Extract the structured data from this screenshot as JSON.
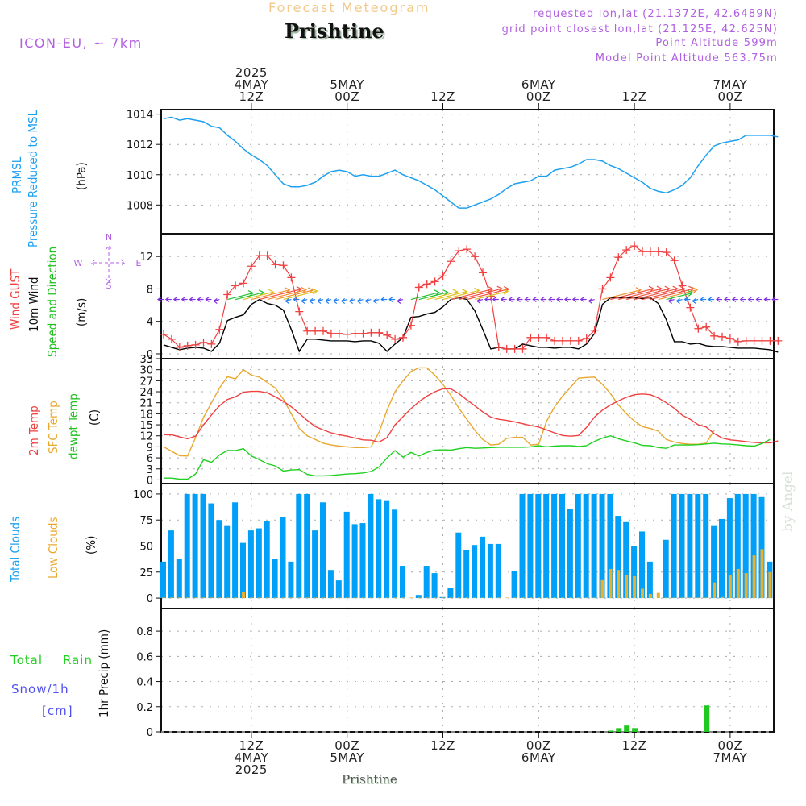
{
  "header": {
    "super_title": "Forecast Meteogram",
    "location": "Prishtine",
    "model": "ICON-EU, ~ 7km",
    "requested": "requested lon,lat (21.1372E, 42.6489N)",
    "grid_point": "grid point closest lon,lat (21.125E, 42.625N)",
    "point_altitude": "Point Altitude 599m",
    "model_altitude": "Model Point Altitude 563.75m"
  },
  "footer": {
    "location": "Prishtine",
    "watermark": "by Angel"
  },
  "time_axis": {
    "start": "2025-05-04T01Z",
    "step_hours": 1,
    "top_labels": [
      {
        "hour": 11,
        "lines": [
          "2025",
          "4MAY",
          "12Z"
        ]
      },
      {
        "hour": 23,
        "lines": [
          "5MAY",
          "00Z"
        ]
      },
      {
        "hour": 35,
        "lines": [
          "12Z"
        ]
      },
      {
        "hour": 47,
        "lines": [
          "6MAY",
          "00Z"
        ]
      },
      {
        "hour": 59,
        "lines": [
          "12Z"
        ]
      },
      {
        "hour": 71,
        "lines": [
          "7MAY",
          "00Z"
        ]
      }
    ],
    "bottom_labels": [
      {
        "hour": 11,
        "lines": [
          "12Z",
          "4MAY",
          "2025"
        ]
      },
      {
        "hour": 23,
        "lines": [
          "00Z",
          "5MAY"
        ]
      },
      {
        "hour": 35,
        "lines": [
          "12Z"
        ]
      },
      {
        "hour": 47,
        "lines": [
          "00Z",
          "6MAY"
        ]
      },
      {
        "hour": 59,
        "lines": [
          "12Z"
        ]
      },
      {
        "hour": 71,
        "lines": [
          "00Z",
          "7MAY"
        ]
      }
    ],
    "hours_total": 76
  },
  "colors": {
    "pressure": "#1ea0f0",
    "gust": "#f04040",
    "wind": "#000000",
    "temp2m": "#f04040",
    "sfc_temp": "#e8a830",
    "dewpoint": "#20d020",
    "total_clouds": "#00a0f8",
    "low_clouds": "#e8b030",
    "rain": "#20c820",
    "snow": "#5050f0",
    "compass": "#b060e0"
  },
  "legends": {
    "pressure": [
      "PRMSL",
      "Pressure Reduced to MSL",
      "(hPa)"
    ],
    "wind": [
      "Wind GUST",
      "10m Wind",
      "Speed and Direction",
      "(m/s)"
    ],
    "compass": {
      "n": "N",
      "s": "S",
      "w": "W",
      "e": "E"
    },
    "temp": [
      "2m Temp",
      "SFC Temp",
      "dewpt Temp",
      "(C)"
    ],
    "clouds": [
      "Total Clouds",
      "Low Clouds",
      "(%)"
    ],
    "precip": {
      "total": "Total",
      "rain": "Rain",
      "snow": "Snow/1h",
      "unit": "[cm]",
      "axis": "1hr Precip (mm)"
    }
  },
  "chart_data": [
    {
      "type": "line",
      "title": "PRMSL Pressure Reduced to MSL",
      "ylabel": "(hPa)",
      "ylim": [
        1006.1,
        1014.3
      ],
      "yticks": [
        1008,
        1010,
        1012,
        1014
      ],
      "series": [
        {
          "name": "PRMSL",
          "values": [
            1013.7,
            1013.8,
            1013.6,
            1013.7,
            1013.6,
            1013.5,
            1013.2,
            1013.1,
            1012.6,
            1012.2,
            1011.7,
            1011.3,
            1011.0,
            1010.6,
            1010.0,
            1009.4,
            1009.2,
            1009.2,
            1009.3,
            1009.5,
            1009.9,
            1010.2,
            1010.3,
            1010.2,
            1009.9,
            1010.0,
            1009.9,
            1009.9,
            1010.1,
            1010.3,
            1010.0,
            1009.8,
            1009.6,
            1009.3,
            1009.0,
            1008.6,
            1008.2,
            1007.8,
            1007.8,
            1008.0,
            1008.2,
            1008.4,
            1008.7,
            1009.1,
            1009.4,
            1009.5,
            1009.6,
            1009.9,
            1009.9,
            1010.3,
            1010.4,
            1010.5,
            1010.7,
            1011.0,
            1011.0,
            1010.9,
            1010.6,
            1010.4,
            1010.1,
            1009.8,
            1009.5,
            1009.1,
            1008.9,
            1008.8,
            1009.0,
            1009.3,
            1009.8,
            1010.6,
            1011.3,
            1011.9,
            1012.1,
            1012.2,
            1012.3,
            1012.6,
            1012.6,
            1012.6,
            1012.6,
            1012.5
          ]
        }
      ]
    },
    {
      "type": "line",
      "title": "Wind GUST / 10m Wind Speed and Direction",
      "ylabel": "(m/s)",
      "ylim": [
        -0.6,
        14.8
      ],
      "yticks": [
        0,
        4,
        8,
        12
      ],
      "series": [
        {
          "name": "Wind GUST",
          "values": [
            2.4,
            1.8,
            0.8,
            1.0,
            1.1,
            1.4,
            1.2,
            3.0,
            7.3,
            8.4,
            8.7,
            10.8,
            12.1,
            12.1,
            11.0,
            10.9,
            9.4,
            5.2,
            2.8,
            2.8,
            2.8,
            2.5,
            2.5,
            2.4,
            2.5,
            2.5,
            2.6,
            2.6,
            2.3,
            1.8,
            2.0,
            3.5,
            8.2,
            8.6,
            8.9,
            9.6,
            11.4,
            12.7,
            12.9,
            12.0,
            10.0,
            7.1,
            0.8,
            0.6,
            0.6,
            0.6,
            2.0,
            2.0,
            2.0,
            1.6,
            1.6,
            1.6,
            1.6,
            1.9,
            2.9,
            8.0,
            9.4,
            11.9,
            12.8,
            13.3,
            12.6,
            12.6,
            12.6,
            12.5,
            11.5,
            8.4,
            5.7,
            3.1,
            3.3,
            2.2,
            2.1,
            1.9,
            1.5,
            1.6,
            1.6,
            1.6,
            1.6,
            1.6
          ]
        },
        {
          "name": "10m Wind",
          "values": [
            1.1,
            0.8,
            0.5,
            0.7,
            0.8,
            0.7,
            0.3,
            1.3,
            4.1,
            4.5,
            4.8,
            6.1,
            6.7,
            6.2,
            6.0,
            5.4,
            3.0,
            0.3,
            1.8,
            1.8,
            1.7,
            1.6,
            1.6,
            1.6,
            1.5,
            1.6,
            1.6,
            1.3,
            0.3,
            1.2,
            2.0,
            4.5,
            4.6,
            4.9,
            5.1,
            5.8,
            6.7,
            6.9,
            6.7,
            5.3,
            3.0,
            0.6,
            0.8,
            0.6,
            0.6,
            1.2,
            1.0,
            0.8,
            0.8,
            0.7,
            0.8,
            0.8,
            0.6,
            1.2,
            2.5,
            6.1,
            6.9,
            6.9,
            6.9,
            6.9,
            6.8,
            6.9,
            6.2,
            4.2,
            1.5,
            1.5,
            1.2,
            1.3,
            1.0,
            0.9,
            0.9,
            0.8,
            0.7,
            0.7,
            0.7,
            0.6,
            0.5,
            0.2
          ]
        },
        {
          "name": "Wind Direction",
          "arrows": "W-directed at night (purple/blue), E/NE-directed and strong during day (green-orange-red)"
        }
      ]
    },
    {
      "type": "line",
      "title": "2m Temp / SFC Temp / dewpt Temp",
      "ylabel": "(C)",
      "ylim": [
        -1,
        33
      ],
      "yticks": [
        0,
        3,
        6,
        9,
        12,
        15,
        18,
        21,
        24,
        27,
        30,
        33
      ],
      "series": [
        {
          "name": "2m Temp",
          "values": [
            12.3,
            12.3,
            11.7,
            11.2,
            11.9,
            15.0,
            17.7,
            20.2,
            21.9,
            22.6,
            23.9,
            24.1,
            24.1,
            23.7,
            22.6,
            21.4,
            19.9,
            18.1,
            16.2,
            14.5,
            13.6,
            12.8,
            12.3,
            11.9,
            11.4,
            10.9,
            10.8,
            10.3,
            11.5,
            15.0,
            17.2,
            19.4,
            21.3,
            22.8,
            24.0,
            24.8,
            24.8,
            23.5,
            21.8,
            20.2,
            18.5,
            17.1,
            16.5,
            16.2,
            15.8,
            15.3,
            14.8,
            14.4,
            13.6,
            12.8,
            12.1,
            11.9,
            12.1,
            14.3,
            17.1,
            19.0,
            20.4,
            21.5,
            22.5,
            23.2,
            23.4,
            23.2,
            22.3,
            21.0,
            19.5,
            17.6,
            16.5,
            15.0,
            14.4,
            12.6,
            11.4,
            10.9,
            10.7,
            10.4,
            10.2,
            10.1,
            10.1,
            10.6
          ]
        },
        {
          "name": "SFC Temp",
          "values": [
            9.0,
            7.8,
            6.6,
            6.5,
            11.5,
            17.0,
            21.0,
            25.0,
            28.1,
            27.5,
            30.0,
            28.5,
            28.0,
            26.5,
            25.0,
            22.0,
            18.0,
            14.0,
            12.0,
            11.0,
            10.0,
            9.5,
            9.2,
            9.0,
            8.8,
            8.8,
            9.0,
            13.0,
            19.0,
            24.0,
            27.0,
            29.5,
            30.5,
            30.5,
            28.5,
            26.0,
            23.0,
            19.5,
            16.5,
            13.5,
            11.0,
            9.5,
            9.7,
            11.3,
            11.6,
            11.6,
            9.5,
            9.7,
            16.0,
            19.9,
            22.8,
            25.2,
            27.7,
            27.9,
            28.0,
            26.0,
            23.5,
            20.4,
            18.0,
            16.0,
            14.5,
            14.0,
            13.3,
            11.0,
            10.3,
            9.9,
            9.7,
            9.7,
            10.0,
            13.5
          ]
        },
        {
          "name": "dewpt Temp",
          "values": [
            0.5,
            0.5,
            0.2,
            0.2,
            1.6,
            5.5,
            4.8,
            6.8,
            8.0,
            8.0,
            8.5,
            6.5,
            5.5,
            4.4,
            3.8,
            2.4,
            2.7,
            2.8,
            1.5,
            1.1,
            1.1,
            1.2,
            1.4,
            1.6,
            1.7,
            1.9,
            2.3,
            3.5,
            6.0,
            8.0,
            6.2,
            7.5,
            6.5,
            7.5,
            8.1,
            8.2,
            8.1,
            8.5,
            8.8,
            8.6,
            8.7,
            8.8,
            8.9,
            8.9,
            8.9,
            8.9,
            9.0,
            9.3,
            9.0,
            9.2,
            9.3,
            9.3,
            9.1,
            9.3,
            10.5,
            11.4,
            12.0,
            11.2,
            10.6,
            10.1,
            9.4,
            9.3,
            8.8,
            8.6,
            9.5,
            9.5,
            9.5,
            9.6,
            9.8,
            10.0,
            9.8,
            9.7,
            9.5,
            9.3,
            9.2,
            9.9,
            11.0
          ]
        }
      ]
    },
    {
      "type": "bar",
      "title": "Total Clouds / Low Clouds",
      "ylabel": "(%)",
      "ylim": [
        -10,
        110
      ],
      "yticks": [
        0,
        25,
        50,
        75,
        100
      ],
      "series": [
        {
          "name": "Total Clouds",
          "values": [
            35,
            65,
            38,
            100,
            100,
            100,
            91,
            75,
            70,
            92,
            53,
            65,
            67,
            74,
            38,
            78,
            35,
            100,
            100,
            65,
            92,
            27,
            17,
            83,
            71,
            72,
            100,
            95,
            94,
            85,
            31,
            0,
            3,
            31,
            24,
            1,
            10,
            63,
            46,
            51,
            59,
            52,
            52,
            0,
            26,
            100,
            100,
            100,
            100,
            100,
            100,
            86,
            100,
            100,
            100,
            100,
            100,
            79,
            73,
            50,
            64,
            35,
            0,
            56,
            100,
            100,
            100,
            100,
            100,
            70,
            76,
            96,
            100,
            100,
            100,
            97,
            35
          ]
        },
        {
          "name": "Low Clouds",
          "values": [
            0,
            0,
            0,
            0,
            0,
            0,
            0,
            0,
            0,
            0,
            6,
            0,
            0,
            0,
            0,
            0,
            0,
            0,
            0,
            0,
            0,
            0,
            0,
            0,
            0,
            0,
            0,
            0,
            0,
            0,
            0,
            0,
            0,
            0,
            0,
            0,
            0,
            0,
            0,
            0,
            0,
            0,
            0,
            0,
            0,
            0,
            0,
            0,
            0,
            0,
            0,
            0,
            0,
            0,
            0,
            18,
            28,
            27,
            22,
            21,
            9,
            4,
            5,
            0,
            0,
            0,
            0,
            0,
            0,
            15,
            1,
            22,
            28,
            24,
            41,
            47,
            25
          ]
        }
      ]
    },
    {
      "type": "bar",
      "title": "1hr Precip (mm)",
      "ylabel": "1hr Precip (mm)",
      "ylim": [
        0,
        0.98
      ],
      "yticks": [
        0,
        0.2,
        0.4,
        0.6,
        0.8
      ],
      "series": [
        {
          "name": "Total Rain",
          "values": [
            0,
            0,
            0,
            0,
            0,
            0,
            0,
            0,
            0,
            0,
            0,
            0,
            0,
            0,
            0,
            0,
            0,
            0,
            0,
            0,
            0,
            0,
            0,
            0,
            0,
            0,
            0,
            0,
            0,
            0,
            0,
            0,
            0,
            0,
            0,
            0,
            0,
            0,
            0,
            0,
            0,
            0,
            0,
            0,
            0,
            0,
            0,
            0,
            0,
            0,
            0,
            0,
            0,
            0,
            0,
            0,
            0.01,
            0.03,
            0.05,
            0.03,
            0,
            0,
            0,
            0,
            0,
            0,
            0,
            0,
            0.21,
            0,
            0,
            0,
            0,
            0,
            0,
            0,
            0
          ]
        },
        {
          "name": "Snow/1h",
          "values": []
        }
      ]
    }
  ]
}
